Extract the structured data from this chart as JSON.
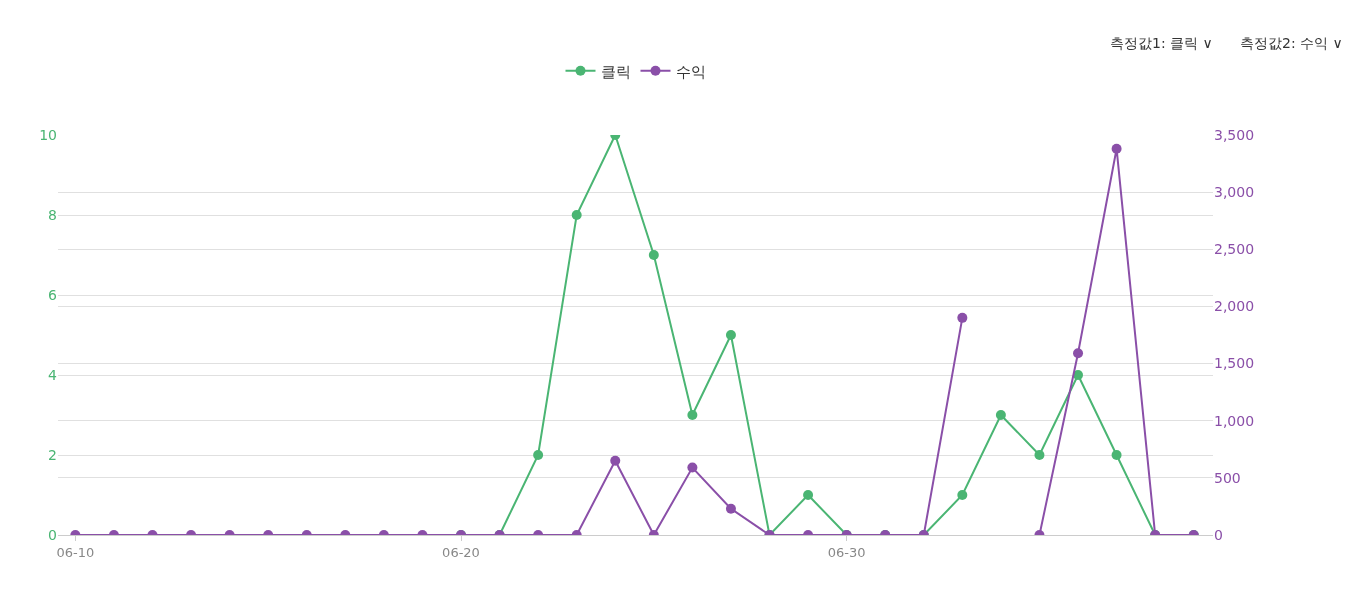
{
  "chart_data": {
    "type": "line",
    "categories": [
      "06-10",
      null,
      null,
      null,
      null,
      null,
      null,
      null,
      null,
      null,
      "06-20",
      null,
      null,
      null,
      null,
      null,
      null,
      null,
      null,
      null,
      "06-30",
      null,
      null,
      null,
      null,
      null,
      null,
      null,
      null,
      null
    ],
    "series": [
      {
        "name": "클릭",
        "color": "#4ab573",
        "values": [
          null,
          null,
          null,
          null,
          null,
          null,
          null,
          null,
          null,
          null,
          0,
          0,
          2,
          8,
          10,
          7,
          3,
          5,
          0,
          1,
          0,
          0,
          0,
          1,
          3,
          2,
          4,
          2,
          0,
          0
        ]
      },
      {
        "name": "수익",
        "color": "#8a4fa8",
        "axis": "y2",
        "values": [
          0,
          0,
          0,
          0,
          0,
          0,
          0,
          0,
          0,
          0,
          0,
          0,
          0,
          0,
          650,
          0,
          590,
          230,
          0,
          0,
          0,
          0,
          0,
          1900,
          null,
          0,
          1590,
          3380,
          0,
          0
        ]
      }
    ],
    "ylim": [
      0,
      10
    ],
    "yticks": [
      0,
      2,
      4,
      6,
      8,
      10
    ],
    "y2lim": [
      0,
      3500
    ],
    "y2ticks": [
      {
        "value": 0,
        "label": "0"
      },
      {
        "value": 500,
        "label": "500"
      },
      {
        "value": 1000,
        "label": "1,000"
      },
      {
        "value": 1500,
        "label": "1,500"
      },
      {
        "value": 2000,
        "label": "2,000"
      },
      {
        "value": 2500,
        "label": "2,500"
      },
      {
        "value": 3000,
        "label": "3,000"
      },
      {
        "value": 3500,
        "label": "3,500"
      }
    ],
    "grid": "y",
    "legend": "top",
    "marker": "circle",
    "line_style": "solid",
    "annotations": [
      "측정값1: 클릭 ∨",
      "측정값2: 수익 ∨"
    ]
  }
}
